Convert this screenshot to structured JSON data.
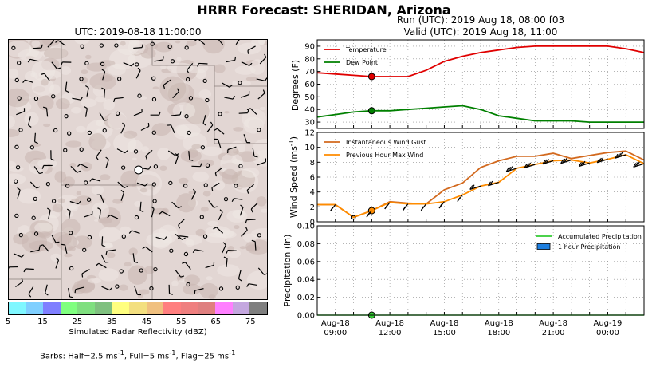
{
  "title": "HRRR Forecast: SHERIDAN, Arizona",
  "map": {
    "title": "UTC: 2019-08-18 11:00:00",
    "colorbar_colors": [
      "#7ff7ff",
      "#7fcfff",
      "#7f7fff",
      "#7fff7f",
      "#7fdf7f",
      "#7fc07f",
      "#ffff7f",
      "#f3df7f",
      "#f0c07f",
      "#ff7f7f",
      "#ef7f7f",
      "#df7f7f",
      "#ff7fff",
      "#c4a7df",
      "#7f7f7f"
    ],
    "colorbar_ticks": [
      "5",
      "15",
      "25",
      "35",
      "45",
      "55",
      "65",
      "75"
    ],
    "colorbar_label": "Simulated Radar Reflectivity (dBZ)"
  },
  "barbs_note": {
    "prefix": "Barbs: Half=2.5 ms",
    "half_sup": "-1",
    "mid": ", Full=5 ms",
    "full_sup": "-1",
    "mid2": ", Flag=25 ms",
    "flag_sup": "-1"
  },
  "run": {
    "line1": "Run (UTC): 2019 Aug 18, 08:00 f03",
    "line2": "Valid (UTC): 2019 Aug 18, 11:00"
  },
  "chart_data": [
    {
      "type": "line",
      "ylabel": "Degrees (F)",
      "ylim": [
        25,
        95
      ],
      "yticks": [
        30,
        40,
        50,
        60,
        70,
        80,
        90
      ],
      "grid": true,
      "legend": "top-left",
      "x": [
        "08:00",
        "09:00",
        "10:00",
        "11:00",
        "12:00",
        "13:00",
        "14:00",
        "15:00",
        "16:00",
        "17:00",
        "18:00",
        "19:00",
        "20:00",
        "21:00",
        "22:00",
        "23:00",
        "00:00",
        "01:00",
        "02:00"
      ],
      "series": [
        {
          "name": "Temperature",
          "color": "#e00000",
          "values": [
            69,
            68,
            67,
            66,
            66,
            66,
            71,
            78,
            82,
            85,
            87,
            89,
            90,
            90,
            90,
            90,
            90,
            88,
            85
          ]
        },
        {
          "name": "Dew Point",
          "color": "#008000",
          "values": [
            34,
            36,
            38,
            39,
            39,
            40,
            41,
            42,
            43,
            40,
            35,
            33,
            31,
            31,
            31,
            30,
            30,
            30,
            30
          ]
        }
      ],
      "marker": {
        "x": "11:00"
      }
    },
    {
      "type": "line",
      "ylim": [
        0,
        12
      ],
      "yticks": [
        0,
        2,
        4,
        6,
        8,
        10,
        12
      ],
      "grid": true,
      "legend": "top-left",
      "x": [
        "08:00",
        "09:00",
        "10:00",
        "11:00",
        "12:00",
        "13:00",
        "14:00",
        "15:00",
        "16:00",
        "17:00",
        "18:00",
        "19:00",
        "20:00",
        "21:00",
        "22:00",
        "23:00",
        "00:00",
        "01:00",
        "02:00"
      ],
      "series": [
        {
          "name": "Instantaneous Wind Gust",
          "color": "#d2691e",
          "values": [
            2.3,
            2.3,
            0.6,
            1.5,
            2.7,
            2.5,
            2.4,
            4.3,
            5.2,
            7.3,
            8.2,
            8.8,
            8.8,
            9.2,
            8.5,
            8.9,
            9.3,
            9.5,
            8.3
          ]
        },
        {
          "name": "Previous Hour Max Wind",
          "color": "#ff8c00",
          "values": [
            2.3,
            2.3,
            0.6,
            1.5,
            2.6,
            2.4,
            2.4,
            2.7,
            3.6,
            4.8,
            5.3,
            7.2,
            7.7,
            8.2,
            8.3,
            7.9,
            8.4,
            9.0,
            7.8
          ]
        }
      ],
      "marker": {
        "x": "11:00"
      }
    },
    {
      "type": "bar",
      "ylabel": "Precipitation (in)",
      "ylim": [
        0,
        0.1
      ],
      "yticks": [
        "0.00",
        "0.02",
        "0.04",
        "0.06",
        "0.08",
        "0.10"
      ],
      "grid": true,
      "legend": "top-right",
      "x": [
        "08:00",
        "09:00",
        "10:00",
        "11:00",
        "12:00",
        "13:00",
        "14:00",
        "15:00",
        "16:00",
        "17:00",
        "18:00",
        "19:00",
        "20:00",
        "21:00",
        "22:00",
        "23:00",
        "00:00",
        "01:00",
        "02:00"
      ],
      "series": [
        {
          "name": "Accumulated Precipitation",
          "color": "#33cc33",
          "values": [
            0,
            0,
            0,
            0,
            0,
            0,
            0,
            0,
            0,
            0,
            0,
            0,
            0,
            0,
            0,
            0,
            0,
            0,
            0
          ]
        },
        {
          "name": "1 hour Precipitation",
          "color": "#1e7fe0",
          "values": [
            0,
            0,
            0,
            0,
            0,
            0,
            0,
            0,
            0,
            0,
            0,
            0,
            0,
            0,
            0,
            0,
            0,
            0,
            0
          ]
        }
      ],
      "marker": {
        "x": "11:00"
      }
    }
  ],
  "wind_ylabel": "Wind Speed",
  "wind_yunit": "(ms",
  "wind_yunit_sup": "-1",
  "wind_yunit_close": ")",
  "time_axis": [
    {
      "day": "Aug-18",
      "hour": "09:00",
      "at": "09:00"
    },
    {
      "day": "Aug-18",
      "hour": "12:00",
      "at": "12:00"
    },
    {
      "day": "Aug-18",
      "hour": "15:00",
      "at": "15:00"
    },
    {
      "day": "Aug-18",
      "hour": "18:00",
      "at": "18:00"
    },
    {
      "day": "Aug-18",
      "hour": "21:00",
      "at": "21:00"
    },
    {
      "day": "Aug-19",
      "hour": "00:00",
      "at": "00:00"
    }
  ]
}
